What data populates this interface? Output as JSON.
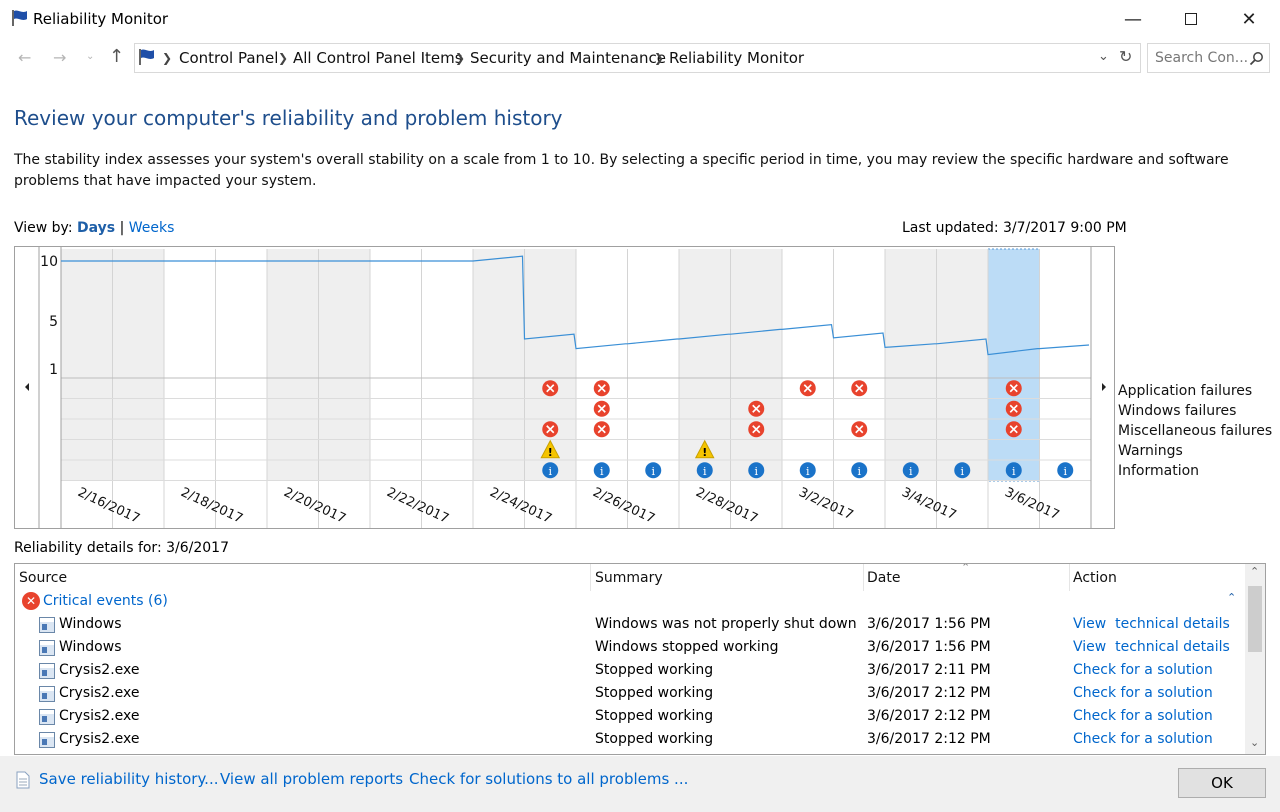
{
  "window": {
    "title": "Reliability Monitor",
    "controls": [
      "minimize",
      "maximize",
      "close"
    ]
  },
  "address": {
    "crumbs": [
      "Control Panel",
      "All Control Panel Items",
      "Security and Maintenance",
      "Reliability Monitor"
    ],
    "search_placeholder": "Search Con..."
  },
  "main": {
    "heading": "Review your computer's reliability and problem history",
    "description": "The stability index assesses your system's overall stability on a scale from 1 to 10. By selecting a specific period in time, you may review the specific hardware and software problems that have impacted your system.",
    "view_by_label": "View by:",
    "view_days": "Days",
    "view_sep": "|",
    "view_weeks": "Weeks",
    "last_updated": "Last updated: 3/7/2017 9:00 PM"
  },
  "chart_data": {
    "type": "line",
    "y_ticks": [
      "10",
      "5",
      "1"
    ],
    "ylim": [
      1,
      10
    ],
    "x_labels": [
      "2/16/2017",
      "2/18/2017",
      "2/20/2017",
      "2/22/2017",
      "2/24/2017",
      "2/26/2017",
      "2/28/2017",
      "3/2/2017",
      "3/4/2017",
      "3/6/2017"
    ],
    "days": [
      "2/16",
      "2/17",
      "2/18",
      "2/19",
      "2/20",
      "2/21",
      "2/22",
      "2/23",
      "2/24",
      "2/25",
      "2/26",
      "2/27",
      "2/28",
      "3/1",
      "3/2",
      "3/3",
      "3/4",
      "3/5",
      "3/6",
      "3/7"
    ],
    "selected_day": "3/6",
    "stability_index": [
      10,
      10,
      10,
      10,
      10,
      10,
      10,
      10,
      10,
      3.5,
      2.7,
      3.1,
      3.5,
      3.9,
      4.3,
      3.6,
      2.8,
      3.1,
      2.2,
      2.7
    ],
    "event_rows": [
      "Application failures",
      "Windows failures",
      "Miscellaneous failures",
      "Warnings",
      "Information"
    ],
    "events": [
      {
        "day": "2/25",
        "row": "Application failures",
        "kind": "error"
      },
      {
        "day": "2/25",
        "row": "Miscellaneous failures",
        "kind": "error"
      },
      {
        "day": "2/25",
        "row": "Warnings",
        "kind": "warning"
      },
      {
        "day": "2/25",
        "row": "Information",
        "kind": "info"
      },
      {
        "day": "2/26",
        "row": "Application failures",
        "kind": "error"
      },
      {
        "day": "2/26",
        "row": "Windows failures",
        "kind": "error"
      },
      {
        "day": "2/26",
        "row": "Miscellaneous failures",
        "kind": "error"
      },
      {
        "day": "2/26",
        "row": "Information",
        "kind": "info"
      },
      {
        "day": "2/27",
        "row": "Information",
        "kind": "info"
      },
      {
        "day": "2/28",
        "row": "Warnings",
        "kind": "warning"
      },
      {
        "day": "2/28",
        "row": "Information",
        "kind": "info"
      },
      {
        "day": "3/1",
        "row": "Windows failures",
        "kind": "error"
      },
      {
        "day": "3/1",
        "row": "Miscellaneous failures",
        "kind": "error"
      },
      {
        "day": "3/1",
        "row": "Information",
        "kind": "info"
      },
      {
        "day": "3/2",
        "row": "Application failures",
        "kind": "error"
      },
      {
        "day": "3/2",
        "row": "Information",
        "kind": "info"
      },
      {
        "day": "3/3",
        "row": "Application failures",
        "kind": "error"
      },
      {
        "day": "3/3",
        "row": "Miscellaneous failures",
        "kind": "error"
      },
      {
        "day": "3/3",
        "row": "Information",
        "kind": "info"
      },
      {
        "day": "3/4",
        "row": "Information",
        "kind": "info"
      },
      {
        "day": "3/5",
        "row": "Information",
        "kind": "info"
      },
      {
        "day": "3/6",
        "row": "Application failures",
        "kind": "error"
      },
      {
        "day": "3/6",
        "row": "Windows failures",
        "kind": "error"
      },
      {
        "day": "3/6",
        "row": "Miscellaneous failures",
        "kind": "error"
      },
      {
        "day": "3/6",
        "row": "Information",
        "kind": "info"
      },
      {
        "day": "3/7",
        "row": "Information",
        "kind": "info"
      }
    ],
    "colors": {
      "line": "#3a8fd6",
      "selected": "#bcdcf6",
      "weekend": "#efefef",
      "error": "#e8432d",
      "warning": "#f5c400",
      "info": "#1a73c9"
    }
  },
  "details": {
    "label": "Reliability details for: 3/6/2017",
    "columns": [
      "Source",
      "Summary",
      "Date",
      "Action"
    ],
    "group": "Critical events (6)",
    "rows": [
      {
        "source": "Windows",
        "summary": "Windows was not properly shut down",
        "date": "3/6/2017 1:56 PM",
        "action": "View  technical details"
      },
      {
        "source": "Windows",
        "summary": "Windows stopped working",
        "date": "3/6/2017 1:56 PM",
        "action": "View  technical details"
      },
      {
        "source": "Crysis2.exe",
        "summary": "Stopped working",
        "date": "3/6/2017 2:11 PM",
        "action": "Check for a solution"
      },
      {
        "source": "Crysis2.exe",
        "summary": "Stopped working",
        "date": "3/6/2017 2:12 PM",
        "action": "Check for a solution"
      },
      {
        "source": "Crysis2.exe",
        "summary": "Stopped working",
        "date": "3/6/2017 2:12 PM",
        "action": "Check for a solution"
      },
      {
        "source": "Crysis2.exe",
        "summary": "Stopped working",
        "date": "3/6/2017 2:12 PM",
        "action": "Check for a solution"
      }
    ]
  },
  "footer": {
    "save": "Save reliability history...",
    "view_reports": "View all problem reports",
    "check_solutions": "Check for solutions to all problems ...",
    "ok": "OK"
  }
}
